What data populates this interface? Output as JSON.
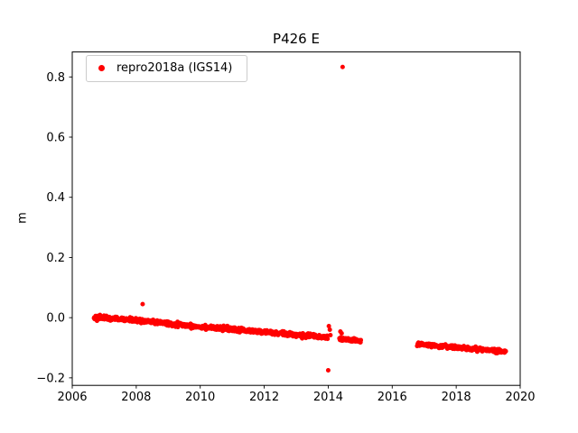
{
  "figure": {
    "background": "#ffffff"
  },
  "chart_data": {
    "type": "scatter",
    "title": "P426 E",
    "xlabel": "",
    "ylabel": "m",
    "xlim": [
      2006,
      2020
    ],
    "ylim": [
      -0.225,
      0.883
    ],
    "xticks": [
      2006,
      2008,
      2010,
      2012,
      2014,
      2016,
      2018,
      2020
    ],
    "xticklabels": [
      "2006",
      "2008",
      "2010",
      "2012",
      "2014",
      "2016",
      "2018",
      "2020"
    ],
    "yticks": [
      -0.2,
      0.0,
      0.2,
      0.4,
      0.6,
      0.8
    ],
    "yticklabels": [
      "−0.2",
      "0.0",
      "0.2",
      "0.4",
      "0.6",
      "0.8"
    ],
    "grid": false,
    "legend": {
      "position": "upper-left",
      "entries": [
        {
          "label": "repro2018a (IGS14)",
          "marker": "dot",
          "color": "#ff0000"
        }
      ]
    },
    "series": [
      {
        "name": "repro2018a (IGS14)",
        "color": "#ff0000",
        "marker": "dot",
        "marker_radius": 2.5,
        "trend_segments": [
          {
            "n": 700,
            "noise": 0.0035,
            "waypoints": [
              [
                2006.68,
                0.002
              ],
              [
                2008.0,
                -0.009
              ],
              [
                2009.0,
                -0.02
              ],
              [
                2010.0,
                -0.03
              ],
              [
                2011.0,
                -0.039
              ],
              [
                2012.0,
                -0.048
              ],
              [
                2013.0,
                -0.057
              ],
              [
                2013.98,
                -0.066
              ]
            ]
          },
          {
            "n": 70,
            "noise": 0.003,
            "waypoints": [
              [
                2014.35,
                -0.071
              ],
              [
                2015.02,
                -0.079
              ]
            ]
          },
          {
            "n": 280,
            "noise": 0.003,
            "waypoints": [
              [
                2016.78,
                -0.088
              ],
              [
                2018.0,
                -0.099
              ],
              [
                2019.55,
                -0.113
              ]
            ]
          }
        ],
        "outliers": [
          [
            2008.2,
            0.045
          ],
          [
            2014.45,
            0.833
          ],
          [
            2014.0,
            -0.175
          ],
          [
            2014.02,
            -0.028
          ],
          [
            2014.05,
            -0.04
          ],
          [
            2014.07,
            -0.058
          ],
          [
            2014.38,
            -0.046
          ],
          [
            2014.42,
            -0.052
          ]
        ]
      }
    ]
  }
}
